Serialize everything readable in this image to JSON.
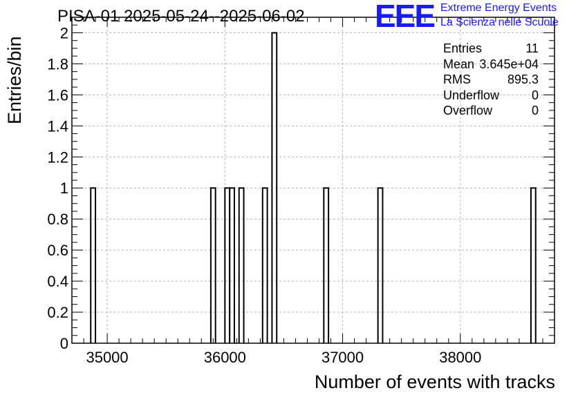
{
  "title": "PISA-01 2025-05-24--2025-06-02",
  "logo": {
    "mark": "EEE",
    "line1": "Extreme Energy Events",
    "line2": "La Scienza nelle Scuole"
  },
  "stats": [
    {
      "label": "Entries",
      "value": "11"
    },
    {
      "label": "Mean",
      "value": "3.645e+04"
    },
    {
      "label": "RMS",
      "value": "895.3"
    },
    {
      "label": "Underflow",
      "value": "0"
    },
    {
      "label": "Overflow",
      "value": "0"
    }
  ],
  "colors": {
    "bars": "#000000",
    "grid": "#b4b4b4",
    "logo": "#1a1aff"
  },
  "chart_data": {
    "type": "bar",
    "title": "PISA-01 2025-05-24--2025-06-02",
    "xlabel": "Number of events with tracks",
    "ylabel": "Entries/bin",
    "xlim": [
      34700,
      38800
    ],
    "ylim": [
      0,
      2.1
    ],
    "bin_width": 40,
    "x_ticks": [
      35000,
      36000,
      37000,
      38000
    ],
    "y_ticks": [
      0,
      0.2,
      0.4,
      0.6,
      0.8,
      1,
      1.2,
      1.4,
      1.6,
      1.8,
      2
    ],
    "y_tick_labels": [
      "0",
      "0.2",
      "0.4",
      "0.6",
      "0.8",
      "1",
      "1.2",
      "1.4",
      "1.6",
      "1.8",
      "2"
    ],
    "grid": true,
    "bins": [
      {
        "low": 34860,
        "count": 1
      },
      {
        "low": 35880,
        "count": 1
      },
      {
        "low": 36000,
        "count": 1
      },
      {
        "low": 36040,
        "count": 1
      },
      {
        "low": 36120,
        "count": 1
      },
      {
        "low": 36320,
        "count": 1
      },
      {
        "low": 36400,
        "count": 2
      },
      {
        "low": 36840,
        "count": 1
      },
      {
        "low": 37300,
        "count": 1
      },
      {
        "low": 38600,
        "count": 1
      }
    ]
  }
}
